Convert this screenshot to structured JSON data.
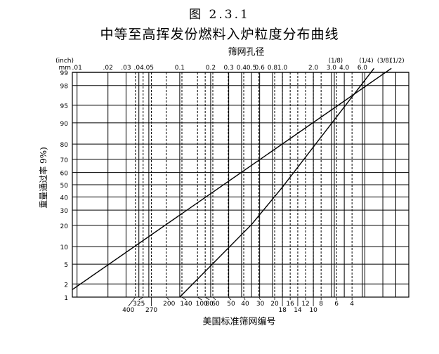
{
  "figure_label": "图 2.3.1",
  "title": "中等至高挥发份燃料入炉粒度分布曲线",
  "chart_data": {
    "type": "line",
    "title": "中等至高挥发份燃料入炉粒度分布曲线",
    "top_axis": {
      "label": "筛网孔径",
      "unit_inch": "(inch)",
      "unit_mm": "mm",
      "scale": "log",
      "range_mm": [
        0.009,
        17
      ],
      "ticks": [
        {
          "value": 0.01,
          "label": ".01"
        },
        {
          "value": 0.02,
          "label": ".02"
        },
        {
          "value": 0.03,
          "label": ".03"
        },
        {
          "value": 0.04,
          "label": ".04"
        },
        {
          "value": 0.05,
          "label": ".05"
        },
        {
          "value": 0.1,
          "label": "0.1"
        },
        {
          "value": 0.2,
          "label": "0.2"
        },
        {
          "value": 0.3,
          "label": "0.3"
        },
        {
          "value": 0.4,
          "label": "0.4"
        },
        {
          "value": 0.5,
          "label": "0.5"
        },
        {
          "value": 0.6,
          "label": "0.6"
        },
        {
          "value": 0.8,
          "label": "0.8"
        },
        {
          "value": 1.0,
          "label": "1.0"
        },
        {
          "value": 2.0,
          "label": "2.0"
        },
        {
          "value": 3.0,
          "label": "3.0"
        },
        {
          "value": 4.0,
          "label": "4.0"
        },
        {
          "value": 6.0,
          "label": "6.0"
        }
      ],
      "inch_labels": [
        {
          "value": 3.2,
          "label": "(1/8)"
        },
        {
          "value": 6.35,
          "label": "(1/4)"
        },
        {
          "value": 9.5,
          "label": "(3/8)"
        },
        {
          "value": 12.7,
          "label": "(1/2)"
        }
      ]
    },
    "bottom_axis": {
      "label": "美国标准筛网编号",
      "ticks": [
        {
          "value": 0.037,
          "label": "400"
        },
        {
          "value": 0.044,
          "label": "325"
        },
        {
          "value": 0.053,
          "label": "270"
        },
        {
          "value": 0.074,
          "label": "200"
        },
        {
          "value": 0.105,
          "label": "140"
        },
        {
          "value": 0.149,
          "label": "100"
        },
        {
          "value": 0.177,
          "label": "80"
        },
        {
          "value": 0.21,
          "label": "60"
        },
        {
          "value": 0.297,
          "label": "50"
        },
        {
          "value": 0.42,
          "label": "40"
        },
        {
          "value": 0.59,
          "label": "30"
        },
        {
          "value": 0.84,
          "label": "20"
        },
        {
          "value": 1.0,
          "label": "18"
        },
        {
          "value": 1.19,
          "label": "16"
        },
        {
          "value": 1.41,
          "label": "14"
        },
        {
          "value": 1.68,
          "label": "12"
        },
        {
          "value": 2.0,
          "label": "10"
        },
        {
          "value": 2.38,
          "label": "8"
        },
        {
          "value": 3.36,
          "label": "6"
        },
        {
          "value": 4.76,
          "label": "4"
        }
      ]
    },
    "y_axis": {
      "label": "重量通过率 9%)",
      "scale": "probability",
      "range": [
        1,
        99
      ],
      "ticks": [
        1,
        2,
        5,
        10,
        20,
        30,
        40,
        50,
        60,
        70,
        80,
        90,
        95,
        98,
        99
      ]
    },
    "grid": true,
    "series": [
      {
        "points": [
          [
            0.009,
            1.5
          ],
          [
            11.5,
            99.2
          ]
        ]
      },
      {
        "points": [
          [
            0.1,
            1.0
          ],
          [
            0.5,
            20.5
          ],
          [
            1.0,
            48
          ],
          [
            7.8,
            99.2
          ]
        ]
      }
    ]
  },
  "colors": {
    "ink": "#000000",
    "background": "#ffffff"
  }
}
